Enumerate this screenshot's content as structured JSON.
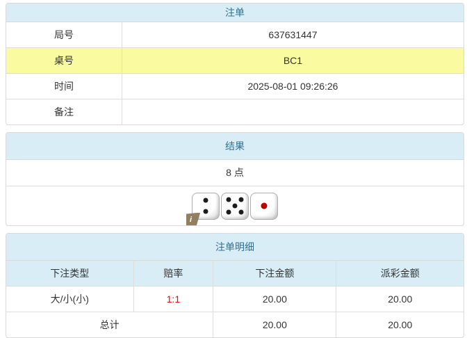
{
  "colors": {
    "heading_bg": "#d9edf7",
    "heading_text": "#31708f",
    "highlight_row_bg": "#fafaa0",
    "odds_text": "#ff0000",
    "table_border": "#dddddd"
  },
  "bet_panel": {
    "title": "注单",
    "rows": [
      {
        "label": "局号",
        "value": "637631447",
        "highlight": false
      },
      {
        "label": "桌号",
        "value": "BC1",
        "highlight": true
      },
      {
        "label": "时间",
        "value": "2025-08-01 09:26:26",
        "highlight": false
      },
      {
        "label": "备注",
        "value": "",
        "highlight": false
      }
    ]
  },
  "result_panel": {
    "title": "结果",
    "points": "8 点",
    "dice": [
      {
        "value": 2,
        "color": "black"
      },
      {
        "value": 5,
        "color": "black"
      },
      {
        "value": 1,
        "color": "red"
      }
    ],
    "info_icon": "i"
  },
  "detail_panel": {
    "title": "注单明细",
    "columns": [
      "下注类型",
      "赔率",
      "下注金额",
      "派彩金额"
    ],
    "rows": [
      {
        "bet_type": "大/小(小)",
        "odds": "1:1",
        "bet_amount": "20.00",
        "payout_amount": "20.00"
      }
    ],
    "total": {
      "label": "总计",
      "bet_amount": "20.00",
      "payout_amount": "20.00"
    }
  }
}
